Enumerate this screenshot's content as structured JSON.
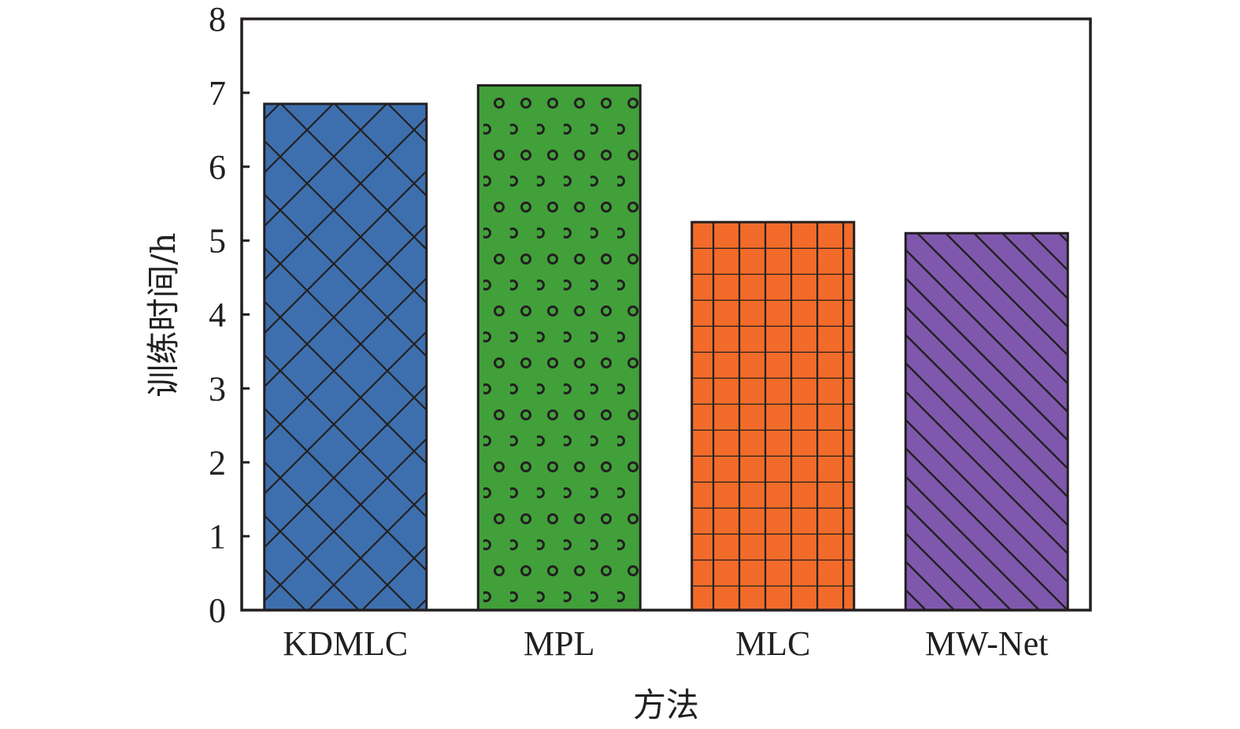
{
  "chart_data": {
    "type": "bar",
    "title": "",
    "xlabel": "方法",
    "ylabel": "训练时间/h",
    "categories": [
      "KDMLC",
      "MPL",
      "MLC",
      "MW-Net"
    ],
    "values": [
      6.85,
      7.1,
      5.25,
      5.1
    ],
    "ylim": [
      0,
      8
    ],
    "yticks": [
      "0",
      "1",
      "2",
      "3",
      "4",
      "5",
      "6",
      "7",
      "8"
    ],
    "grid": false,
    "legend": "none",
    "series_styles": [
      {
        "color": "#3d6fae",
        "pattern": "crosshatch-diagonal"
      },
      {
        "color": "#41a03a",
        "pattern": "circles"
      },
      {
        "color": "#f26b2a",
        "pattern": "grid"
      },
      {
        "color": "#7f58ae",
        "pattern": "diagonal"
      }
    ],
    "line_color": "#231f20"
  }
}
